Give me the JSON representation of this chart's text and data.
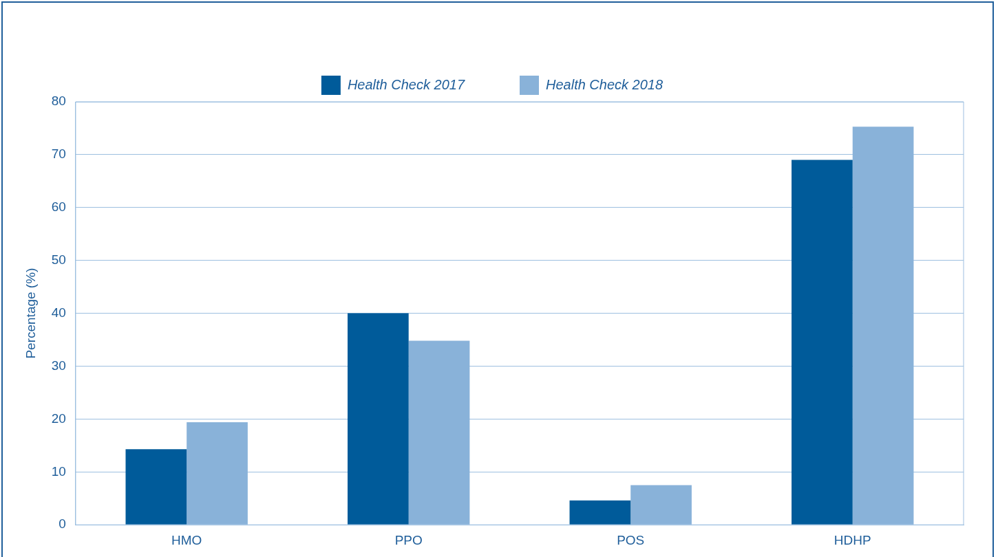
{
  "chart_data": {
    "type": "bar",
    "ylabel": "Percentage (%)",
    "categories": [
      "HMO",
      "PPO",
      "POS",
      "HDHP"
    ],
    "series": [
      {
        "name": "Health Check 2017",
        "color": "#005b9a",
        "values": [
          14.3,
          40.0,
          4.6,
          69.0
        ]
      },
      {
        "name": "Health Check 2018",
        "color": "#89b2d9",
        "values": [
          19.4,
          34.8,
          7.5,
          75.3
        ]
      }
    ],
    "ylim": [
      0,
      80
    ],
    "yticks": [
      0,
      10,
      20,
      30,
      40,
      50,
      60,
      70,
      80
    ],
    "grid": "y",
    "legend": "top"
  }
}
